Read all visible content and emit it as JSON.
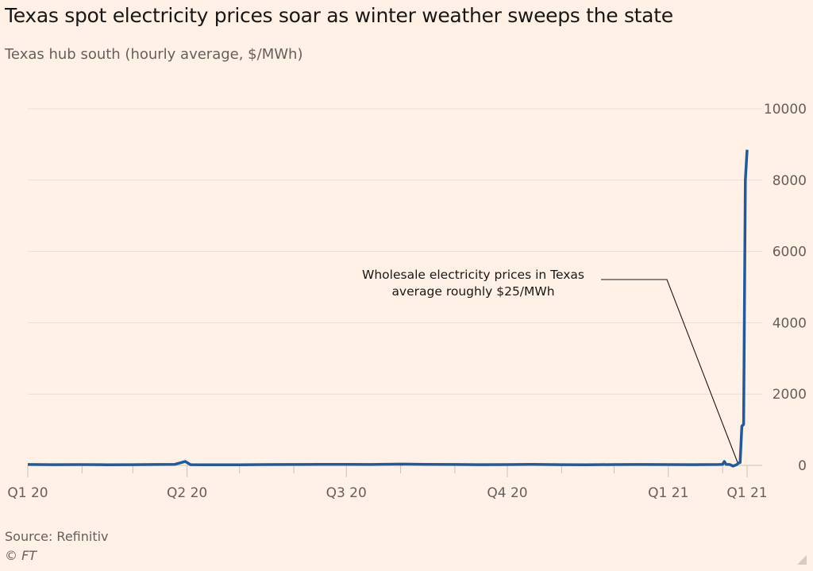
{
  "chart_data": {
    "type": "line",
    "title": "Texas spot electricity prices soar as winter weather sweeps the state",
    "subtitle": "Texas hub south (hourly average, $/MWh)",
    "source": "Source: Refinitiv",
    "copyright": "© FT",
    "ylim": [
      0,
      10000
    ],
    "yticks": [
      0,
      2000,
      4000,
      6000,
      8000,
      10000
    ],
    "xlim": [
      "2020-01-01",
      "2021-02-15"
    ],
    "xtick_labels": [
      {
        "date": "2020-01-01",
        "label": "Q1 20"
      },
      {
        "date": "2020-04-01",
        "label": "Q2 20"
      },
      {
        "date": "2020-07-01",
        "label": "Q3 20"
      },
      {
        "date": "2020-10-01",
        "label": "Q4 20"
      },
      {
        "date": "2021-01-01",
        "label": "Q1 21"
      },
      {
        "date": "2021-02-15",
        "label": "Q1 21"
      }
    ],
    "minor_ticks": [
      "2020-02-01",
      "2020-03-01",
      "2020-05-01",
      "2020-06-01",
      "2020-08-01",
      "2020-09-01",
      "2020-11-01",
      "2020-12-01",
      "2021-02-01"
    ],
    "grid": true,
    "line_color": "#1f5aa0",
    "series": [
      {
        "points": [
          [
            "2020-01-01",
            25
          ],
          [
            "2020-01-15",
            20
          ],
          [
            "2020-02-01",
            22
          ],
          [
            "2020-02-15",
            18
          ],
          [
            "2020-03-01",
            20
          ],
          [
            "2020-03-15",
            25
          ],
          [
            "2020-03-25",
            30
          ],
          [
            "2020-03-31",
            110
          ],
          [
            "2020-04-03",
            20
          ],
          [
            "2020-04-15",
            15
          ],
          [
            "2020-05-01",
            18
          ],
          [
            "2020-05-15",
            22
          ],
          [
            "2020-06-01",
            25
          ],
          [
            "2020-06-15",
            28
          ],
          [
            "2020-07-01",
            30
          ],
          [
            "2020-07-15",
            25
          ],
          [
            "2020-08-01",
            35
          ],
          [
            "2020-08-15",
            30
          ],
          [
            "2020-09-01",
            25
          ],
          [
            "2020-09-15",
            20
          ],
          [
            "2020-10-01",
            22
          ],
          [
            "2020-10-15",
            30
          ],
          [
            "2020-11-01",
            20
          ],
          [
            "2020-11-15",
            18
          ],
          [
            "2020-12-01",
            22
          ],
          [
            "2020-12-15",
            25
          ],
          [
            "2021-01-01",
            22
          ],
          [
            "2021-01-15",
            20
          ],
          [
            "2021-01-30",
            25
          ],
          [
            "2021-02-01",
            30
          ],
          [
            "2021-02-02",
            110
          ],
          [
            "2021-02-03",
            30
          ],
          [
            "2021-02-05",
            25
          ],
          [
            "2021-02-07",
            -20
          ],
          [
            "2021-02-09",
            20
          ],
          [
            "2021-02-10",
            60
          ],
          [
            "2021-02-11",
            80
          ],
          [
            "2021-02-12",
            1100
          ],
          [
            "2021-02-13",
            1150
          ],
          [
            "2021-02-14",
            8000
          ],
          [
            "2021-02-15",
            8850
          ]
        ]
      }
    ],
    "annotation": {
      "lines": [
        "Wholesale electricity prices in Texas",
        "average roughly $25/MWh"
      ],
      "target": [
        "2021-02-10",
        25
      ]
    }
  }
}
